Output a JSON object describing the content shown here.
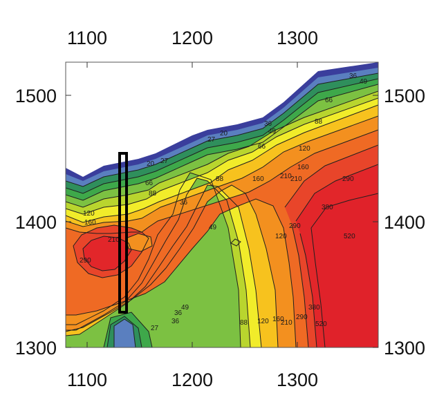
{
  "chart_data": {
    "type": "heatmap",
    "title": "",
    "xlabel": "",
    "ylabel": "",
    "xlim": [
      1080,
      1385
    ],
    "ylim": [
      1300,
      1525
    ],
    "grid": false,
    "x_ticks": [
      "1100",
      "1200",
      "1300"
    ],
    "y_ticks": [
      "1300",
      "1400",
      "1500"
    ],
    "contour_levels": [
      20,
      27,
      36,
      49,
      66,
      88,
      120,
      160,
      210,
      290,
      380,
      520
    ],
    "level_colors": [
      "#3a3e9c",
      "#5a7fbf",
      "#2f8f5c",
      "#3ea84a",
      "#7cc142",
      "#b9d52e",
      "#f1ec2a",
      "#f7c21e",
      "#f3901f",
      "#ef6a24",
      "#e8452a",
      "#e2262a",
      "#e0222a"
    ],
    "contour_labels": [
      "36",
      "49",
      "66",
      "88",
      "120",
      "160",
      "210",
      "290",
      "380",
      "520",
      "27",
      "20",
      "66",
      "36",
      "49",
      "88",
      "120",
      "160",
      "210",
      "290",
      "49",
      "36",
      "27",
      "20",
      "66",
      "88",
      "120",
      "160",
      "210",
      "290",
      "49",
      "36",
      "88",
      "120",
      "160",
      "210",
      "290",
      "380",
      "520",
      "27",
      "36"
    ],
    "overlay": {
      "type": "rectangle",
      "x": [
        1133,
        1140
      ],
      "y": [
        1328,
        1453
      ]
    }
  }
}
